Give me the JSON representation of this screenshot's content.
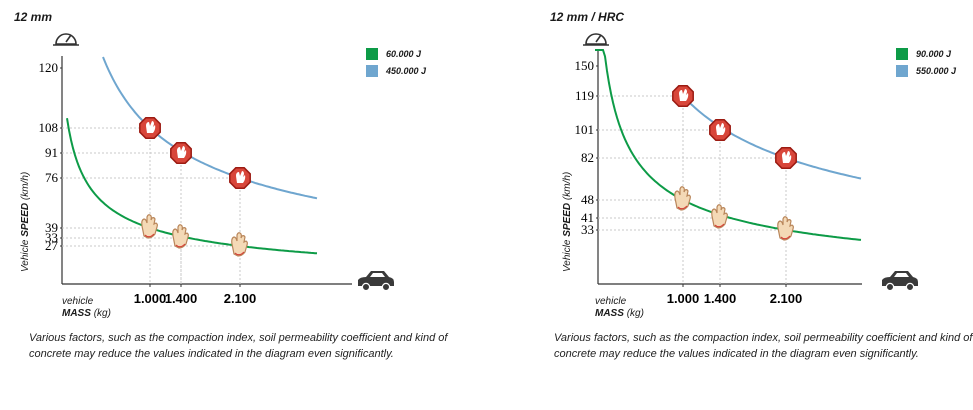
{
  "chart_data": [
    {
      "type": "line",
      "title": "12 mm",
      "xlabel_line1": "vehicle",
      "xlabel_mass": "MASS",
      "xlabel_unit": "(kg)",
      "ylabel_prefix": "Vehicle",
      "ylabel_bold": "SPEED",
      "ylabel_unit": "(km/h)",
      "y_ticks": [
        120,
        108,
        91,
        76,
        39,
        33,
        27
      ],
      "x_ticks": [
        {
          "value": 1000,
          "label": "1.000"
        },
        {
          "value": 1400,
          "label": "1.400"
        },
        {
          "value": 2100,
          "label": "2.100"
        }
      ],
      "series": [
        {
          "name": "60.000 J",
          "color": "#0d9b47",
          "energy_j": 60000,
          "marker": "hand",
          "points": [
            {
              "x": 1000,
              "y": 39
            },
            {
              "x": 1400,
              "y": 33
            },
            {
              "x": 2100,
              "y": 27
            }
          ]
        },
        {
          "name": "450.000 J",
          "color": "#6fa6cf",
          "energy_j": 450000,
          "marker": "stop",
          "points": [
            {
              "x": 1000,
              "y": 108
            },
            {
              "x": 1400,
              "y": 91
            },
            {
              "x": 2100,
              "y": 76
            }
          ]
        }
      ],
      "note": "Various factors, such as the compaction index, soil permeability coefficient and kind of concrete may reduce the values indicated in the diagram even significantly."
    },
    {
      "type": "line",
      "title": "12 mm / HRC",
      "xlabel_line1": "vehicle",
      "xlabel_mass": "MASS",
      "xlabel_unit": "(kg)",
      "ylabel_prefix": "Vehicle",
      "ylabel_bold": "SPEED",
      "ylabel_unit": "(km/h)",
      "y_ticks": [
        150,
        119,
        101,
        82,
        48,
        41,
        33
      ],
      "x_ticks": [
        {
          "value": 1000,
          "label": "1.000"
        },
        {
          "value": 1400,
          "label": "1.400"
        },
        {
          "value": 2100,
          "label": "2.100"
        }
      ],
      "series": [
        {
          "name": "90.000 J",
          "color": "#0d9b47",
          "energy_j": 90000,
          "marker": "hand",
          "points": [
            {
              "x": 1000,
              "y": 48
            },
            {
              "x": 1400,
              "y": 41
            },
            {
              "x": 2100,
              "y": 33
            }
          ]
        },
        {
          "name": "550.000 J",
          "color": "#6fa6cf",
          "energy_j": 550000,
          "marker": "stop",
          "points": [
            {
              "x": 1000,
              "y": 119
            },
            {
              "x": 1400,
              "y": 101
            },
            {
              "x": 2100,
              "y": 82
            }
          ]
        }
      ],
      "note": "Various factors, such as the compaction index, soil permeability coefficient and kind of concrete may reduce the values indicated in the diagram even significantly."
    }
  ]
}
